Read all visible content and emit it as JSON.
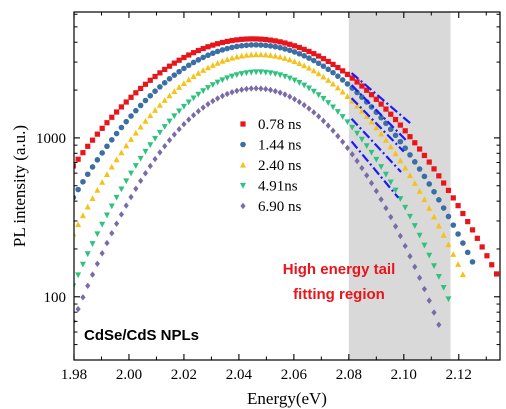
{
  "chart_data": {
    "type": "scatter",
    "xlabel": "Energy(eV)",
    "ylabel": "PL intensity (a.u.)",
    "xlim": [
      1.98,
      2.135
    ],
    "ylim_log": [
      40,
      6200
    ],
    "y_scale": "log",
    "x_ticks": [
      "1.98",
      "2.00",
      "2.02",
      "2.04",
      "2.06",
      "2.08",
      "2.10",
      "2.12"
    ],
    "y_ticks": [
      {
        "value": 100,
        "label": "100"
      },
      {
        "value": 1000,
        "label": "1000"
      }
    ],
    "shaded_region": {
      "x": [
        2.08,
        2.117
      ],
      "color": "#d9d9d9"
    },
    "annotation_lines": [
      "High energy tail",
      "fitting region"
    ],
    "sample_label": "CdSe/CdS NPLs",
    "fit_color": "#1a1aff",
    "series": [
      {
        "name": "0.78 ns",
        "color": "#e8151b",
        "marker": "square",
        "peak": 4200,
        "peak_x": 2.045,
        "sigma": 0.034,
        "tail_end_x": 2.134,
        "fit": [
          [
            2.081,
            2560
          ],
          [
            2.103,
            1210
          ]
        ]
      },
      {
        "name": "1.44 ns",
        "color": "#3a6ea5",
        "marker": "circle",
        "peak": 3850,
        "peak_x": 2.046,
        "sigma": 0.0315,
        "tail_end_x": 2.126,
        "fit": [
          [
            2.081,
            2150
          ],
          [
            2.101,
            960
          ]
        ]
      },
      {
        "name": "2.40 ns",
        "color": "#f5c21b",
        "marker": "triangle-up",
        "peak": 3350,
        "peak_x": 2.047,
        "sigma": 0.0295,
        "tail_end_x": 2.122,
        "fit": [
          [
            2.081,
            1780
          ],
          [
            2.1,
            820
          ]
        ]
      },
      {
        "name": "4.91ns",
        "color": "#2ec27e",
        "marker": "triangle-down",
        "peak": 2600,
        "peak_x": 2.047,
        "sigma": 0.027,
        "tail_end_x": 2.117,
        "fit": [
          [
            2.081,
            1320
          ],
          [
            2.099,
            610
          ]
        ]
      },
      {
        "name": "6.90 ns",
        "color": "#7a6aa8",
        "marker": "diamond",
        "peak": 2050,
        "peak_x": 2.046,
        "sigma": 0.0255,
        "tail_end_x": 2.114,
        "fit": [
          [
            2.081,
            950
          ],
          [
            2.098,
            420
          ]
        ]
      }
    ]
  }
}
